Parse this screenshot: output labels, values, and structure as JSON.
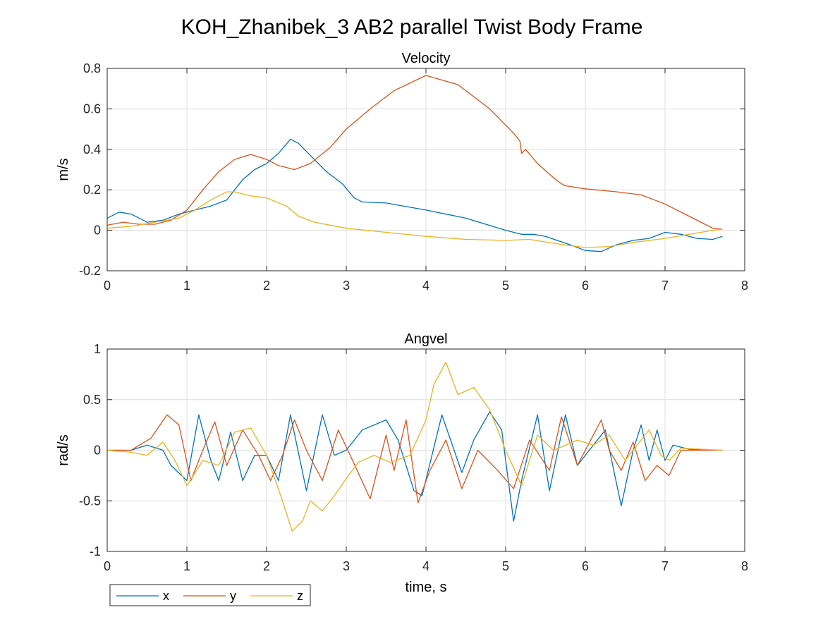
{
  "figure_title": "KOH_Zhanibek_3 AB2 parallel Twist Body Frame",
  "colors": {
    "x": "#0072BD",
    "y": "#D95319",
    "z": "#EDB120"
  },
  "legend": {
    "items": [
      "x",
      "y",
      "z"
    ],
    "location": "bottom-left outside"
  },
  "chart_data": [
    {
      "type": "line",
      "title": "Velocity",
      "xlabel": "",
      "ylabel": "m/s",
      "xlim": [
        0,
        8
      ],
      "ylim": [
        -0.2,
        0.8
      ],
      "xticks": [
        "0",
        "1",
        "2",
        "3",
        "4",
        "5",
        "6",
        "7",
        "8"
      ],
      "yticks": [
        "-0.2",
        "0",
        "0.2",
        "0.4",
        "0.6",
        "0.8"
      ],
      "grid": true,
      "series": [
        {
          "name": "x",
          "color": "#0072BD",
          "points": [
            [
              0,
              0.06
            ],
            [
              0.15,
              0.09
            ],
            [
              0.3,
              0.08
            ],
            [
              0.5,
              0.04
            ],
            [
              0.7,
              0.05
            ],
            [
              0.9,
              0.08
            ],
            [
              1.1,
              0.1
            ],
            [
              1.3,
              0.12
            ],
            [
              1.5,
              0.15
            ],
            [
              1.7,
              0.25
            ],
            [
              1.85,
              0.3
            ],
            [
              2.0,
              0.33
            ],
            [
              2.15,
              0.38
            ],
            [
              2.3,
              0.45
            ],
            [
              2.4,
              0.43
            ],
            [
              2.55,
              0.37
            ],
            [
              2.75,
              0.29
            ],
            [
              2.95,
              0.23
            ],
            [
              3.1,
              0.16
            ],
            [
              3.2,
              0.14
            ],
            [
              3.5,
              0.135
            ],
            [
              4.0,
              0.1
            ],
            [
              4.5,
              0.06
            ],
            [
              5.0,
              0.0
            ],
            [
              5.2,
              -0.02
            ],
            [
              5.35,
              -0.02
            ],
            [
              5.5,
              -0.03
            ],
            [
              5.8,
              -0.07
            ],
            [
              6.0,
              -0.1
            ],
            [
              6.2,
              -0.105
            ],
            [
              6.4,
              -0.07
            ],
            [
              6.6,
              -0.05
            ],
            [
              6.8,
              -0.04
            ],
            [
              7.0,
              -0.01
            ],
            [
              7.2,
              -0.02
            ],
            [
              7.4,
              -0.04
            ],
            [
              7.6,
              -0.045
            ],
            [
              7.72,
              -0.03
            ]
          ]
        },
        {
          "name": "y",
          "color": "#D95319",
          "points": [
            [
              0,
              0.025
            ],
            [
              0.2,
              0.04
            ],
            [
              0.4,
              0.03
            ],
            [
              0.6,
              0.03
            ],
            [
              0.8,
              0.05
            ],
            [
              1.0,
              0.1
            ],
            [
              1.2,
              0.2
            ],
            [
              1.4,
              0.29
            ],
            [
              1.6,
              0.35
            ],
            [
              1.8,
              0.375
            ],
            [
              2.0,
              0.35
            ],
            [
              2.15,
              0.32
            ],
            [
              2.35,
              0.3
            ],
            [
              2.55,
              0.33
            ],
            [
              2.8,
              0.41
            ],
            [
              3.0,
              0.5
            ],
            [
              3.3,
              0.6
            ],
            [
              3.6,
              0.69
            ],
            [
              4.0,
              0.765
            ],
            [
              4.4,
              0.72
            ],
            [
              4.8,
              0.6
            ],
            [
              5.1,
              0.48
            ],
            [
              5.18,
              0.44
            ],
            [
              5.2,
              0.38
            ],
            [
              5.25,
              0.4
            ],
            [
              5.4,
              0.33
            ],
            [
              5.6,
              0.26
            ],
            [
              5.7,
              0.23
            ],
            [
              5.75,
              0.22
            ],
            [
              6.0,
              0.205
            ],
            [
              6.4,
              0.19
            ],
            [
              6.7,
              0.175
            ],
            [
              7.0,
              0.13
            ],
            [
              7.3,
              0.07
            ],
            [
              7.5,
              0.03
            ],
            [
              7.6,
              0.01
            ],
            [
              7.72,
              0.005
            ]
          ]
        },
        {
          "name": "z",
          "color": "#EDB120",
          "points": [
            [
              0,
              0.01
            ],
            [
              0.3,
              0.02
            ],
            [
              0.6,
              0.04
            ],
            [
              0.9,
              0.06
            ],
            [
              1.1,
              0.1
            ],
            [
              1.3,
              0.15
            ],
            [
              1.5,
              0.19
            ],
            [
              1.6,
              0.19
            ],
            [
              1.8,
              0.17
            ],
            [
              2.0,
              0.16
            ],
            [
              2.25,
              0.12
            ],
            [
              2.4,
              0.07
            ],
            [
              2.6,
              0.04
            ],
            [
              3.0,
              0.01
            ],
            [
              3.5,
              -0.01
            ],
            [
              4.0,
              -0.03
            ],
            [
              4.5,
              -0.045
            ],
            [
              5.0,
              -0.05
            ],
            [
              5.3,
              -0.045
            ],
            [
              5.7,
              -0.07
            ],
            [
              6.0,
              -0.085
            ],
            [
              6.3,
              -0.08
            ],
            [
              6.6,
              -0.06
            ],
            [
              7.0,
              -0.04
            ],
            [
              7.3,
              -0.02
            ],
            [
              7.6,
              0.0
            ],
            [
              7.72,
              0.005
            ]
          ]
        }
      ]
    },
    {
      "type": "line",
      "title": "Angvel",
      "xlabel": "time, s",
      "ylabel": "rad/s",
      "xlim": [
        0,
        8
      ],
      "ylim": [
        -1,
        1
      ],
      "xticks": [
        "0",
        "1",
        "2",
        "3",
        "4",
        "5",
        "6",
        "7",
        "8"
      ],
      "yticks": [
        "-1",
        "-0.5",
        "0",
        "0.5",
        "1"
      ],
      "grid": true,
      "series": [
        {
          "name": "x",
          "color": "#0072BD",
          "points": [
            [
              0,
              0.0
            ],
            [
              0.3,
              0.0
            ],
            [
              0.5,
              0.05
            ],
            [
              0.7,
              0.0
            ],
            [
              0.8,
              -0.15
            ],
            [
              1.0,
              -0.3
            ],
            [
              1.15,
              0.35
            ],
            [
              1.3,
              -0.1
            ],
            [
              1.4,
              -0.3
            ],
            [
              1.55,
              0.18
            ],
            [
              1.7,
              -0.3
            ],
            [
              1.85,
              -0.05
            ],
            [
              2.0,
              -0.05
            ],
            [
              2.15,
              -0.3
            ],
            [
              2.3,
              0.35
            ],
            [
              2.5,
              -0.4
            ],
            [
              2.7,
              0.35
            ],
            [
              2.85,
              -0.05
            ],
            [
              3.0,
              0.0
            ],
            [
              3.2,
              0.2
            ],
            [
              3.5,
              0.3
            ],
            [
              3.65,
              0.1
            ],
            [
              3.85,
              -0.4
            ],
            [
              3.95,
              -0.45
            ],
            [
              4.2,
              0.35
            ],
            [
              4.45,
              -0.22
            ],
            [
              4.6,
              0.1
            ],
            [
              4.8,
              0.38
            ],
            [
              4.95,
              0.2
            ],
            [
              5.1,
              -0.7
            ],
            [
              5.2,
              -0.3
            ],
            [
              5.4,
              0.35
            ],
            [
              5.55,
              -0.4
            ],
            [
              5.75,
              0.35
            ],
            [
              5.9,
              -0.15
            ],
            [
              6.05,
              0.0
            ],
            [
              6.25,
              0.2
            ],
            [
              6.45,
              -0.55
            ],
            [
              6.6,
              0.0
            ],
            [
              6.7,
              0.25
            ],
            [
              6.8,
              -0.1
            ],
            [
              6.9,
              0.2
            ],
            [
              7.0,
              -0.1
            ],
            [
              7.1,
              0.05
            ],
            [
              7.3,
              0.01
            ],
            [
              7.72,
              0.0
            ]
          ]
        },
        {
          "name": "y",
          "color": "#D95319",
          "points": [
            [
              0,
              0.0
            ],
            [
              0.3,
              0.0
            ],
            [
              0.55,
              0.12
            ],
            [
              0.75,
              0.35
            ],
            [
              0.9,
              0.25
            ],
            [
              1.05,
              -0.3
            ],
            [
              1.2,
              0.0
            ],
            [
              1.35,
              0.28
            ],
            [
              1.5,
              -0.15
            ],
            [
              1.7,
              0.2
            ],
            [
              1.9,
              -0.05
            ],
            [
              2.05,
              -0.3
            ],
            [
              2.2,
              -0.05
            ],
            [
              2.35,
              0.3
            ],
            [
              2.5,
              0.0
            ],
            [
              2.7,
              -0.3
            ],
            [
              2.9,
              0.2
            ],
            [
              3.05,
              -0.05
            ],
            [
              3.3,
              -0.48
            ],
            [
              3.5,
              0.15
            ],
            [
              3.6,
              -0.2
            ],
            [
              3.75,
              0.3
            ],
            [
              3.9,
              -0.52
            ],
            [
              4.05,
              -0.2
            ],
            [
              4.25,
              0.1
            ],
            [
              4.45,
              -0.38
            ],
            [
              4.65,
              0.0
            ],
            [
              4.9,
              -0.2
            ],
            [
              5.1,
              -0.38
            ],
            [
              5.3,
              0.1
            ],
            [
              5.55,
              -0.2
            ],
            [
              5.7,
              0.33
            ],
            [
              5.9,
              -0.15
            ],
            [
              6.2,
              0.3
            ],
            [
              6.3,
              0.0
            ],
            [
              6.45,
              -0.2
            ],
            [
              6.6,
              0.08
            ],
            [
              6.75,
              -0.3
            ],
            [
              6.9,
              -0.15
            ],
            [
              7.05,
              -0.25
            ],
            [
              7.2,
              0.0
            ],
            [
              7.72,
              0.0
            ]
          ]
        },
        {
          "name": "z",
          "color": "#EDB120",
          "points": [
            [
              0,
              0.0
            ],
            [
              0.3,
              -0.02
            ],
            [
              0.5,
              -0.05
            ],
            [
              0.7,
              0.08
            ],
            [
              0.85,
              -0.1
            ],
            [
              1.0,
              -0.35
            ],
            [
              1.2,
              -0.1
            ],
            [
              1.4,
              -0.15
            ],
            [
              1.6,
              0.18
            ],
            [
              1.8,
              0.22
            ],
            [
              2.0,
              -0.05
            ],
            [
              2.2,
              -0.5
            ],
            [
              2.32,
              -0.8
            ],
            [
              2.45,
              -0.7
            ],
            [
              2.55,
              -0.5
            ],
            [
              2.7,
              -0.6
            ],
            [
              2.85,
              -0.45
            ],
            [
              3.0,
              -0.28
            ],
            [
              3.15,
              -0.12
            ],
            [
              3.35,
              -0.05
            ],
            [
              3.55,
              -0.12
            ],
            [
              3.8,
              -0.05
            ],
            [
              4.0,
              0.3
            ],
            [
              4.1,
              0.65
            ],
            [
              4.25,
              0.87
            ],
            [
              4.4,
              0.55
            ],
            [
              4.6,
              0.62
            ],
            [
              4.8,
              0.4
            ],
            [
              5.0,
              0.0
            ],
            [
              5.2,
              -0.35
            ],
            [
              5.4,
              0.15
            ],
            [
              5.6,
              0.0
            ],
            [
              5.9,
              0.1
            ],
            [
              6.1,
              0.05
            ],
            [
              6.3,
              0.15
            ],
            [
              6.5,
              -0.1
            ],
            [
              6.8,
              0.2
            ],
            [
              6.95,
              -0.05
            ],
            [
              7.05,
              -0.1
            ],
            [
              7.2,
              0.02
            ],
            [
              7.72,
              0.0
            ]
          ]
        }
      ]
    }
  ]
}
